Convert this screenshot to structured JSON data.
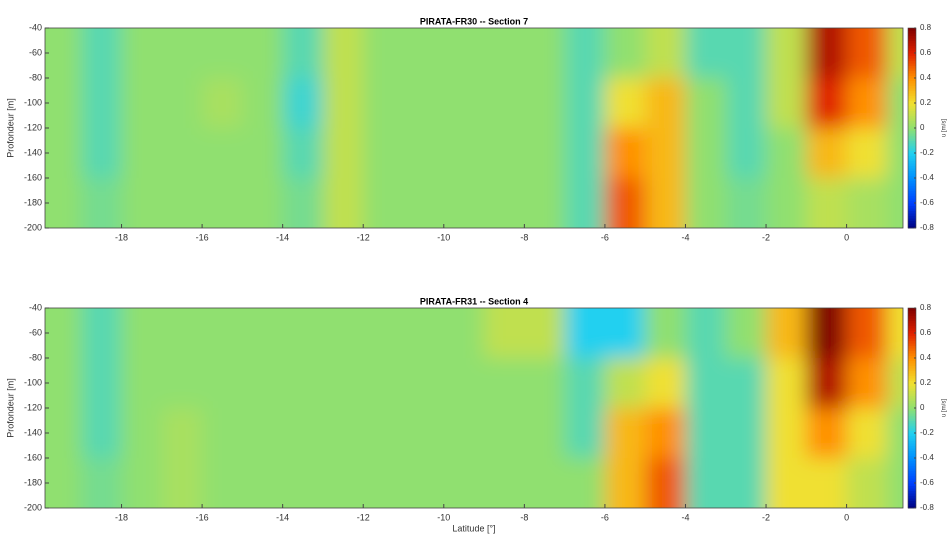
{
  "chart_data": [
    {
      "type": "heatmap",
      "title": "PIRATA-FR30 -- Section 7",
      "ylabel": "Profondeur [m]",
      "colorbar_label": "u [m/s]",
      "x": [
        -19.5,
        -18.5,
        -17.5,
        -16.5,
        -15.5,
        -14.5,
        -13.5,
        -12.5,
        -11.5,
        -10.5,
        -9.5,
        -8.5,
        -7.5,
        -6.5,
        -5.5,
        -4.5,
        -3.5,
        -2.5,
        -1.5,
        -0.5,
        0.5,
        1.5
      ],
      "y": [
        -60,
        -100,
        -140,
        -180
      ],
      "values": [
        [
          0,
          -0.1,
          0,
          0,
          0,
          0,
          -0.1,
          0.1,
          0,
          0,
          0,
          0,
          0,
          -0.1,
          0,
          0.1,
          -0.1,
          -0.1,
          0.1,
          0.7,
          0.5,
          0.1
        ],
        [
          0,
          -0.1,
          0,
          0,
          0.05,
          0,
          -0.15,
          0.1,
          0,
          0,
          0,
          0,
          0,
          -0.1,
          0.2,
          0.3,
          0,
          -0.1,
          0.1,
          0.6,
          0.4,
          0
        ],
        [
          0,
          -0.1,
          0,
          0,
          0,
          0,
          -0.1,
          0.1,
          0,
          0,
          0,
          0,
          0,
          -0.1,
          0.4,
          0.3,
          0,
          -0.1,
          0,
          0.3,
          0.2,
          0
        ],
        [
          0,
          -0.05,
          0,
          0,
          0,
          0,
          -0.05,
          0.1,
          0,
          0,
          0,
          0,
          0,
          -0.1,
          0.5,
          0.3,
          0,
          -0.05,
          0,
          0.1,
          0.05,
          0
        ]
      ],
      "xlim": [
        -19.9,
        1.4
      ],
      "ylim": [
        -200,
        -40
      ],
      "xticks": [
        -18,
        -16,
        -14,
        -12,
        -10,
        -8,
        -6,
        -4,
        -2,
        0
      ],
      "yticks": [
        -40,
        -60,
        -80,
        -100,
        -120,
        -140,
        -160,
        -180,
        -200
      ],
      "clim": [
        -0.8,
        0.8
      ],
      "cticks": [
        -0.8,
        -0.6,
        -0.4,
        -0.2,
        0,
        0.2,
        0.4,
        0.6,
        0.8
      ],
      "colormap": [
        "#00007f",
        "#0040ff",
        "#0090ff",
        "#20d0f0",
        "#90e070",
        "#f0e030",
        "#ff9000",
        "#e02000",
        "#800000"
      ]
    },
    {
      "type": "heatmap",
      "title": "PIRATA-FR31 -- Section 4",
      "xlabel": "Latitude [°]",
      "ylabel": "Profondeur [m]",
      "colorbar_label": "u [m/s]",
      "x": [
        -19.5,
        -18.5,
        -17.5,
        -16.5,
        -15.5,
        -14.5,
        -13.5,
        -12.5,
        -11.5,
        -10.5,
        -9.5,
        -8.5,
        -7.5,
        -6.5,
        -5.5,
        -4.5,
        -3.5,
        -2.5,
        -1.5,
        -0.5,
        0.5,
        1.5
      ],
      "y": [
        -60,
        -100,
        -140,
        -180
      ],
      "values": [
        [
          0,
          -0.1,
          0,
          0,
          0,
          0,
          0,
          0,
          0,
          0,
          0,
          0.1,
          0.1,
          -0.2,
          -0.2,
          0,
          -0.1,
          0,
          0.3,
          0.8,
          0.5,
          0.2
        ],
        [
          0,
          -0.1,
          0,
          0,
          0,
          0,
          0,
          0,
          0,
          0,
          0,
          0,
          0,
          -0.1,
          0.1,
          0.2,
          -0.1,
          -0.1,
          0.2,
          0.7,
          0.4,
          0.1
        ],
        [
          0,
          -0.1,
          0,
          0.05,
          0,
          0,
          0,
          0,
          0,
          0,
          0,
          0,
          0,
          -0.1,
          0.3,
          0.4,
          -0.1,
          -0.1,
          0.2,
          0.4,
          0.2,
          0
        ],
        [
          0,
          -0.05,
          0,
          0.05,
          0,
          0,
          0,
          0,
          0,
          0,
          0,
          0,
          0,
          0,
          0.3,
          0.5,
          -0.1,
          -0.1,
          0.2,
          0.2,
          0.1,
          0
        ]
      ],
      "xlim": [
        -19.9,
        1.4
      ],
      "ylim": [
        -200,
        -40
      ],
      "xticks": [
        -18,
        -16,
        -14,
        -12,
        -10,
        -8,
        -6,
        -4,
        -2,
        0
      ],
      "yticks": [
        -40,
        -60,
        -80,
        -100,
        -120,
        -140,
        -160,
        -180,
        -200
      ],
      "clim": [
        -0.8,
        0.8
      ],
      "cticks": [
        -0.8,
        -0.6,
        -0.4,
        -0.2,
        0,
        0.2,
        0.4,
        0.6,
        0.8
      ],
      "colormap": [
        "#00007f",
        "#0040ff",
        "#0090ff",
        "#20d0f0",
        "#90e070",
        "#f0e030",
        "#ff9000",
        "#e02000",
        "#800000"
      ]
    }
  ]
}
